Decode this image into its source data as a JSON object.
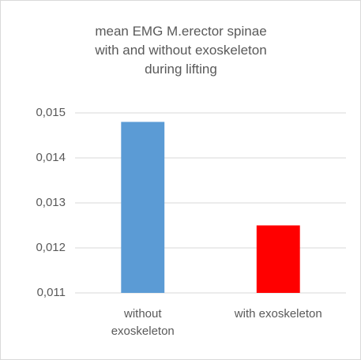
{
  "chart_data": {
    "type": "bar",
    "title": "mean EMG M.erector spinae with and without exoskeleton during lifting",
    "categories": [
      "without exoskeleton",
      "with exoskeleton"
    ],
    "values": [
      0.0148,
      0.0125
    ],
    "colors": [
      "#5b9bd5",
      "#ff0000"
    ],
    "ylim": [
      0.011,
      0.015
    ],
    "yticks": [
      {
        "value": 0.011,
        "label": "0,011"
      },
      {
        "value": 0.012,
        "label": "0,012"
      },
      {
        "value": 0.013,
        "label": "0,013"
      },
      {
        "value": 0.014,
        "label": "0,014"
      },
      {
        "value": 0.015,
        "label": "0,015"
      }
    ],
    "grid": true
  }
}
